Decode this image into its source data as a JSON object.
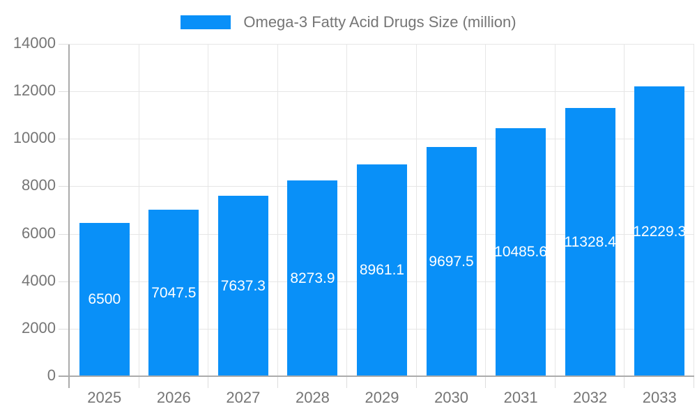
{
  "chart_data": {
    "type": "bar",
    "title": "",
    "legend": "Omega-3 Fatty Acid Drugs Size (million)",
    "legend_position": "top",
    "categories": [
      "2025",
      "2026",
      "2027",
      "2028",
      "2029",
      "2030",
      "2031",
      "2032",
      "2033"
    ],
    "values": [
      6500,
      7047.5,
      7637.3,
      8273.9,
      8961.1,
      9697.5,
      10485.6,
      11328.4,
      12229.3
    ],
    "bar_labels": [
      "6500",
      "7047.5",
      "7637.3",
      "8273.9",
      "8961.1",
      "9697.5",
      "10485.6",
      "11328.4",
      "12229.3"
    ],
    "xlabel": "",
    "ylabel": "",
    "ylim": [
      0,
      14000
    ],
    "ytick_interval": 2000,
    "yticks": [
      "0",
      "2000",
      "4000",
      "6000",
      "8000",
      "10000",
      "12000",
      "14000"
    ],
    "grid": true,
    "colors": {
      "bar": "#0990f8",
      "bar_label_text": "#ffffff",
      "axis_text": "#757575",
      "gridline": "#e6e6e6",
      "tick": "#dddddd",
      "axis_line": "#ababab",
      "background": "#ffffff"
    }
  }
}
